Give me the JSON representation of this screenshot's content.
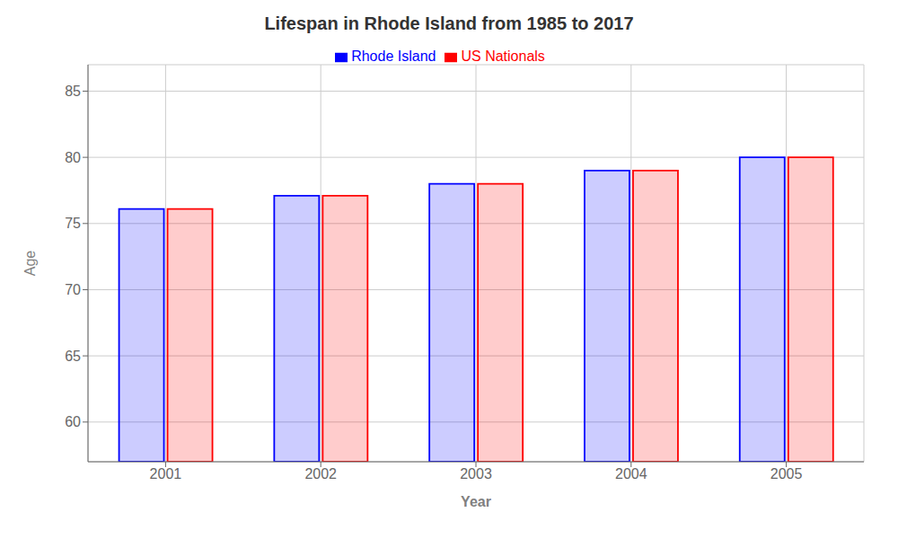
{
  "chart_data": {
    "type": "bar",
    "title": "Lifespan in Rhode Island from 1985 to 2017",
    "xlabel": "Year",
    "ylabel": "Age",
    "categories": [
      "2001",
      "2002",
      "2003",
      "2004",
      "2005"
    ],
    "series": [
      {
        "name": "Rhode Island",
        "color": "#0000ff",
        "values": [
          76.1,
          77.1,
          78.0,
          79.0,
          80.0
        ]
      },
      {
        "name": "US Nationals",
        "color": "#ff0000",
        "values": [
          76.1,
          77.1,
          78.0,
          79.0,
          80.0
        ]
      }
    ],
    "ylim": [
      57,
      87
    ],
    "yticks": [
      60,
      65,
      70,
      75,
      80,
      85
    ],
    "grid": true,
    "legend": "top"
  }
}
